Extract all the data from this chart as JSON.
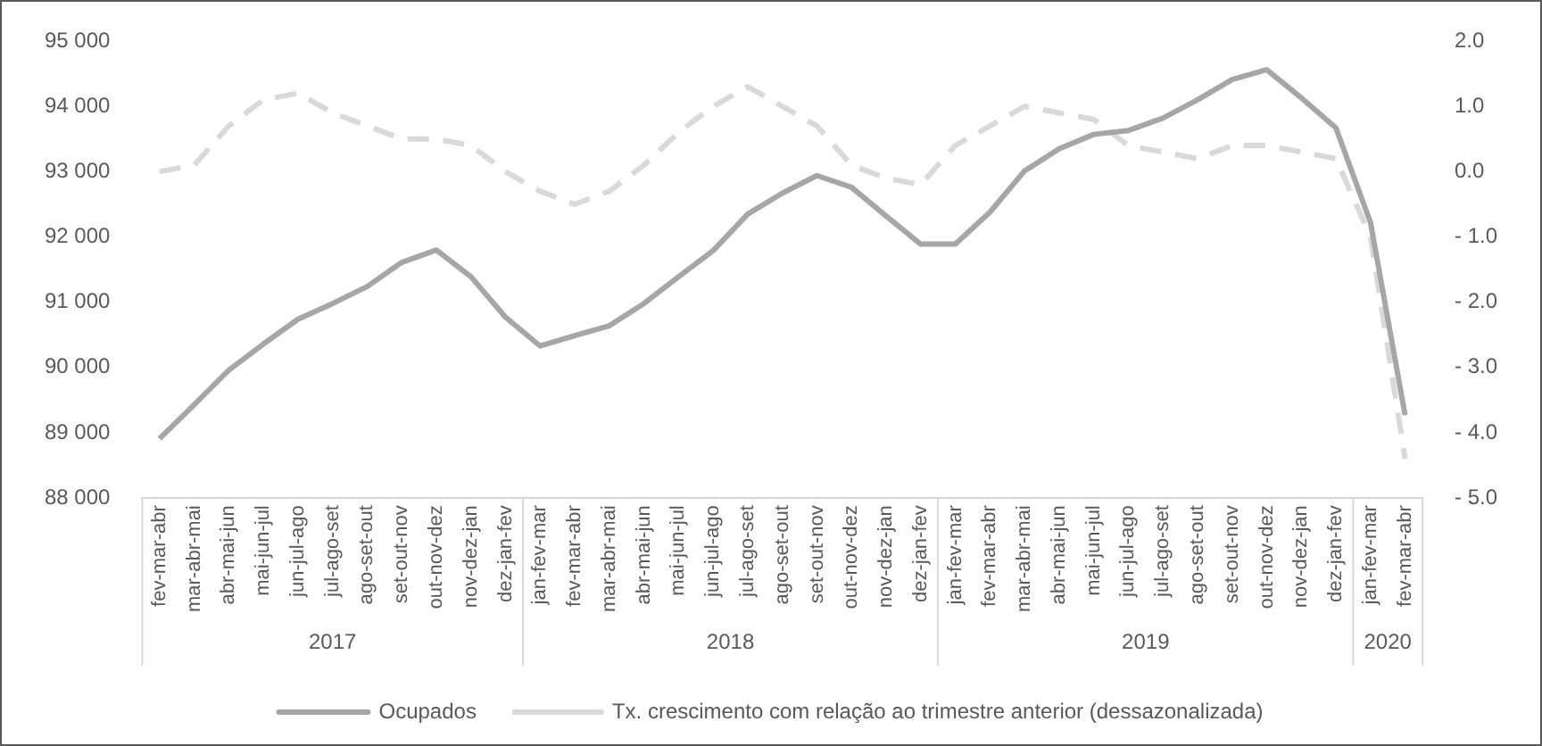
{
  "chart_data": {
    "type": "line",
    "categories": [
      "fev-mar-abr",
      "mar-abr-mai",
      "abr-mai-jun",
      "mai-jun-jul",
      "jun-jul-ago",
      "jul-ago-set",
      "ago-set-out",
      "set-out-nov",
      "out-nov-dez",
      "nov-dez-jan",
      "dez-jan-fev",
      "jan-fev-mar",
      "fev-mar-abr",
      "mar-abr-mai",
      "abr-mai-jun",
      "mai-jun-jul",
      "jun-jul-ago",
      "jul-ago-set",
      "ago-set-out",
      "set-out-nov",
      "out-nov-dez",
      "nov-dez-jan",
      "dez-jan-fev",
      "jan-fev-mar",
      "fev-mar-abr",
      "mar-abr-mai",
      "abr-mai-jun",
      "mai-jun-jul",
      "jun-jul-ago",
      "jul-ago-set",
      "ago-set-out",
      "set-out-nov",
      "out-nov-dez",
      "nov-dez-jan",
      "dez-jan-fev",
      "jan-fev-mar",
      "fev-mar-abr"
    ],
    "series": [
      {
        "name": "Ocupados",
        "color": "#a6a6a6",
        "line_style": "solid",
        "values": [
          88910,
          89430,
          89960,
          90360,
          90740,
          90980,
          91240,
          91610,
          91800,
          91390,
          90770,
          90330,
          90490,
          90640,
          90980,
          91390,
          91790,
          92350,
          92670,
          92940,
          92760,
          92320,
          91890,
          91890,
          92380,
          93010,
          93350,
          93570,
          93630,
          93820,
          94100,
          94410,
          94560,
          94130,
          93670,
          92220,
          89270
        ]
      },
      {
        "name": "Tx. crescimento com relação ao trimestre anterior (dessazonalizada)",
        "color": "#d9d9d9",
        "line_style": "dashed",
        "axis": "y2",
        "values": [
          0.0,
          0.1,
          0.7,
          1.1,
          1.2,
          0.9,
          0.7,
          0.5,
          0.5,
          0.4,
          0.0,
          -0.3,
          -0.5,
          -0.3,
          0.1,
          0.6,
          1.0,
          1.3,
          1.0,
          0.7,
          0.1,
          -0.1,
          -0.2,
          0.4,
          0.7,
          1.0,
          0.9,
          0.8,
          0.4,
          0.3,
          0.2,
          0.4,
          0.4,
          0.3,
          0.2,
          -1.0,
          -4.4
        ]
      }
    ],
    "ylim": [
      88000,
      95000
    ],
    "yticks": [
      {
        "value": 88000,
        "label": "88 000"
      },
      {
        "value": 89000,
        "label": "89 000"
      },
      {
        "value": 90000,
        "label": "90 000"
      },
      {
        "value": 91000,
        "label": "91 000"
      },
      {
        "value": 92000,
        "label": "92 000"
      },
      {
        "value": 93000,
        "label": "93 000"
      },
      {
        "value": 94000,
        "label": "94 000"
      },
      {
        "value": 95000,
        "label": "95 000"
      }
    ],
    "y2lim": [
      -5,
      2
    ],
    "y2ticks": [
      {
        "value": -5,
        "label": "- 5.0"
      },
      {
        "value": -4,
        "label": "- 4.0"
      },
      {
        "value": -3,
        "label": "- 3.0"
      },
      {
        "value": -2,
        "label": "- 2.0"
      },
      {
        "value": -1,
        "label": "- 1.0"
      },
      {
        "value": 0,
        "label": "0.0"
      },
      {
        "value": 1,
        "label": "1.0"
      },
      {
        "value": 2,
        "label": "2.0"
      }
    ],
    "annotations": [
      "2017",
      "2018",
      "2019",
      "2020"
    ],
    "marker": "none",
    "legend": "bottom"
  }
}
